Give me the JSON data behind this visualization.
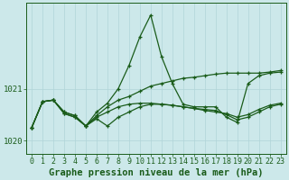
{
  "title": "Graphe pression niveau de la mer (hPa)",
  "background_color": "#cce8ea",
  "plot_bg_color": "#cce8ea",
  "grid_color": "#b0d4d8",
  "line_color": "#1a5c1a",
  "xlim": [
    -0.5,
    23.5
  ],
  "ylim": [
    1019.75,
    1022.65
  ],
  "yticks": [
    1020,
    1021
  ],
  "xticks": [
    0,
    1,
    2,
    3,
    4,
    5,
    6,
    7,
    8,
    9,
    10,
    11,
    12,
    13,
    14,
    15,
    16,
    17,
    18,
    19,
    20,
    21,
    22,
    23
  ],
  "series": [
    [
      1020.25,
      1020.75,
      1020.78,
      1020.55,
      1020.48,
      1020.28,
      1020.55,
      1020.72,
      1021.0,
      1021.45,
      1022.0,
      1022.42,
      1021.62,
      1021.1,
      1020.7,
      1020.65,
      1020.65,
      1020.65,
      1020.45,
      1020.35,
      1021.1,
      1021.25,
      1021.3,
      1021.32
    ],
    [
      1020.25,
      1020.75,
      1020.78,
      1020.55,
      1020.48,
      1020.28,
      1020.48,
      1020.65,
      1020.78,
      1020.85,
      1020.95,
      1021.05,
      1021.1,
      1021.15,
      1021.2,
      1021.22,
      1021.25,
      1021.28,
      1021.3,
      1021.3,
      1021.3,
      1021.3,
      1021.32,
      1021.35
    ],
    [
      1020.25,
      1020.75,
      1020.78,
      1020.52,
      1020.45,
      1020.28,
      1020.42,
      1020.28,
      1020.45,
      1020.55,
      1020.65,
      1020.7,
      1020.7,
      1020.68,
      1020.65,
      1020.62,
      1020.58,
      1020.55,
      1020.52,
      1020.45,
      1020.5,
      1020.6,
      1020.68,
      1020.72
    ],
    [
      1020.25,
      1020.75,
      1020.78,
      1020.52,
      1020.45,
      1020.28,
      1020.45,
      1020.55,
      1020.65,
      1020.7,
      1020.72,
      1020.72,
      1020.7,
      1020.68,
      1020.65,
      1020.62,
      1020.6,
      1020.58,
      1020.5,
      1020.4,
      1020.45,
      1020.55,
      1020.65,
      1020.7
    ]
  ],
  "title_fontsize": 7.5,
  "tick_fontsize": 6.5
}
